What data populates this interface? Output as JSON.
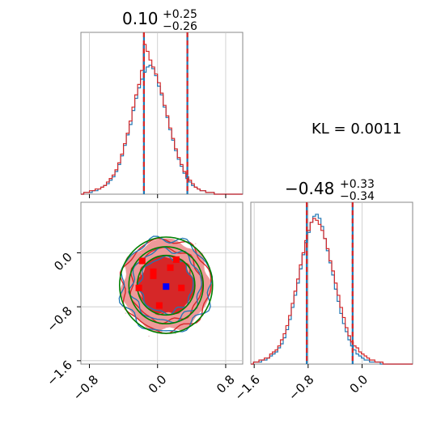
{
  "colors": {
    "blue": "#1f77b4",
    "red": "#d62728",
    "green": "#008000",
    "red_fill_dark": "#d62728",
    "red_fill_light": "#ee9999",
    "marker_red": "#ff0000",
    "marker_blue": "#0000ff",
    "grid": "#c8c8c8"
  },
  "titles": {
    "p1_value": "0.10",
    "p1_upper": "+0.25",
    "p1_lower": "−0.26",
    "p2_value": "−0.48",
    "p2_upper": "+0.33",
    "p2_lower": "−0.34"
  },
  "kl_text": "KL = 0.0011",
  "chart_data": [
    {
      "type": "histogram",
      "panel": "top-left marginal",
      "xlim": [
        -0.9,
        1.0
      ],
      "ticks": [
        -0.8,
        0.0,
        0.8
      ],
      "tick_labels": [],
      "quantiles": [
        -0.16,
        0.35
      ],
      "median": 0.1,
      "series": [
        {
          "color": "blue",
          "bin_edges_start": -0.9,
          "bin_width": 0.0333,
          "values": [
            0,
            1,
            1,
            1,
            2,
            2,
            3,
            4,
            5,
            6,
            8,
            10,
            13,
            17,
            22,
            28,
            34,
            40,
            48,
            55,
            61,
            66,
            70,
            73,
            74,
            72,
            68,
            62,
            57,
            50,
            44,
            37,
            31,
            25,
            20,
            16,
            12,
            9,
            7,
            5,
            4,
            3,
            2,
            2,
            1,
            1,
            1,
            0,
            0,
            0,
            0,
            0,
            0,
            0,
            0,
            0,
            0
          ]
        },
        {
          "color": "red",
          "bin_edges_start": -0.9,
          "bin_width": 0.0333,
          "values": [
            0,
            1,
            1,
            2,
            2,
            3,
            3,
            4,
            5,
            7,
            9,
            11,
            14,
            18,
            23,
            29,
            35,
            42,
            50,
            57,
            63,
            71,
            86,
            82,
            77,
            73,
            69,
            64,
            58,
            51,
            45,
            38,
            32,
            26,
            21,
            17,
            13,
            10,
            8,
            6,
            4,
            3,
            2,
            2,
            1,
            1,
            1,
            0,
            0,
            0,
            0,
            0,
            0,
            0,
            0,
            0,
            0
          ]
        }
      ]
    },
    {
      "type": "histogram",
      "panel": "bottom-right marginal",
      "xlim": [
        -1.65,
        0.75
      ],
      "ticks": [
        -1.6,
        -0.8,
        0.0
      ],
      "tick_labels": [
        "−1.6",
        "−0.8",
        "0.0"
      ],
      "quantiles": [
        -0.82,
        -0.14
      ],
      "median": -0.48,
      "series": [
        {
          "color": "blue",
          "bin_edges_start": -1.65,
          "bin_width": 0.04,
          "values": [
            0,
            1,
            1,
            1,
            2,
            2,
            3,
            4,
            5,
            6,
            8,
            10,
            13,
            17,
            22,
            28,
            34,
            40,
            47,
            54,
            60,
            65,
            70,
            73,
            74,
            72,
            68,
            62,
            56,
            50,
            44,
            37,
            31,
            25,
            20,
            16,
            12,
            9,
            7,
            5,
            4,
            3,
            2,
            2,
            1,
            1,
            1,
            1,
            0,
            0,
            0,
            0,
            0,
            0,
            0,
            0,
            0,
            0,
            0,
            0
          ]
        },
        {
          "color": "red",
          "bin_edges_start": -1.65,
          "bin_width": 0.04,
          "values": [
            0,
            1,
            1,
            2,
            2,
            3,
            3,
            5,
            6,
            7,
            9,
            12,
            15,
            19,
            24,
            30,
            36,
            42,
            49,
            55,
            61,
            66,
            70,
            72,
            71,
            69,
            66,
            62,
            57,
            51,
            46,
            40,
            34,
            28,
            23,
            18,
            14,
            11,
            9,
            8,
            6,
            5,
            4,
            3,
            2,
            2,
            1,
            1,
            1,
            0,
            0,
            0,
            0,
            0,
            0,
            0,
            0,
            0,
            0,
            0
          ]
        }
      ]
    },
    {
      "type": "contour",
      "panel": "bottom-left 2D",
      "xlim": [
        -0.9,
        1.0
      ],
      "ylim": [
        -1.65,
        0.75
      ],
      "x_ticks": [
        -0.8,
        0.0,
        0.8
      ],
      "x_tick_labels": [
        "−0.8",
        "0.0",
        "0.8"
      ],
      "y_ticks": [
        -1.6,
        -0.8,
        0.0
      ],
      "y_tick_labels": [
        "−1.6",
        "−0.8",
        "0.0"
      ],
      "center": [
        0.1,
        -0.48
      ],
      "sigma": [
        0.26,
        0.34
      ],
      "contour_levels_sigma": [
        1.0,
        1.6,
        2.0
      ],
      "red_markers": [
        [
          -0.18,
          -0.12
        ],
        [
          0.15,
          -0.22
        ],
        [
          -0.05,
          -0.34
        ],
        [
          0.28,
          -0.52
        ],
        [
          -0.22,
          -0.52
        ],
        [
          0.02,
          -0.78
        ],
        [
          0.22,
          -0.1
        ],
        [
          -0.05,
          -0.28
        ]
      ],
      "blue_marker": [
        0.1,
        -0.5
      ],
      "gridlines_x": [
        0.0,
        0.8
      ],
      "gridlines_y": [
        -1.6,
        -0.8,
        0.0
      ]
    }
  ]
}
